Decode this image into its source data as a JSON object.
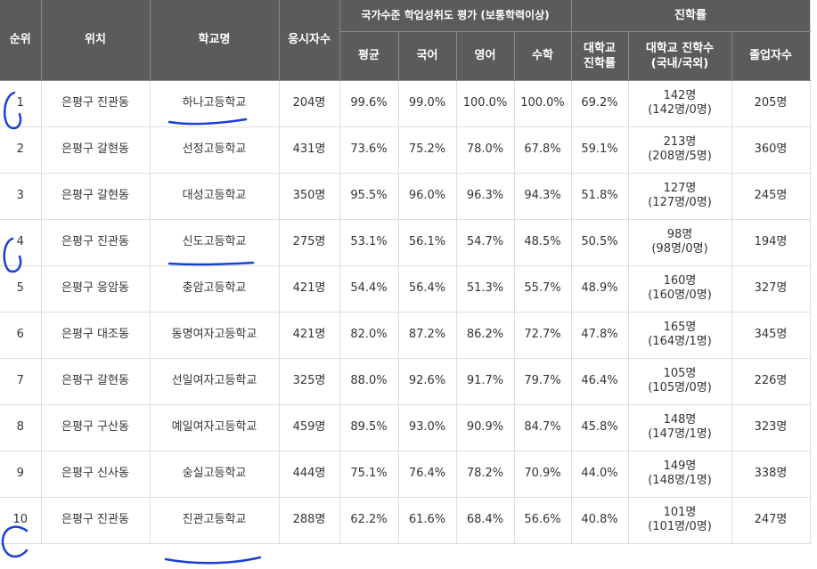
{
  "headers": {
    "rank": "순위",
    "location": "위치",
    "school": "학교명",
    "applicants": "응시자수",
    "achievement_group": "국가수준 학업성취도 평가 (보통학력이상)",
    "avg": "평균",
    "korean": "국어",
    "english": "영어",
    "math": "수학",
    "advancement_group": "진학률",
    "univ_rate": "대학교 진학률",
    "univ_count": "대학교 진학수 (국내/국외)",
    "graduates": "졸업자수"
  },
  "rows": [
    {
      "rank": "1",
      "location": "은평구 진관동",
      "school": "하나고등학교",
      "applicants": "204명",
      "avg": "99.6%",
      "korean": "99.0%",
      "english": "100.0%",
      "math": "100.0%",
      "univ_rate": "69.2%",
      "univ_count": "142명",
      "univ_split": "(142명/0명)",
      "graduates": "205명"
    },
    {
      "rank": "2",
      "location": "은평구 갈현동",
      "school": "선정고등학교",
      "applicants": "431명",
      "avg": "73.6%",
      "korean": "75.2%",
      "english": "78.0%",
      "math": "67.8%",
      "univ_rate": "59.1%",
      "univ_count": "213명",
      "univ_split": "(208명/5명)",
      "graduates": "360명"
    },
    {
      "rank": "3",
      "location": "은평구 갈현동",
      "school": "대성고등학교",
      "applicants": "350명",
      "avg": "95.5%",
      "korean": "96.0%",
      "english": "96.3%",
      "math": "94.3%",
      "univ_rate": "51.8%",
      "univ_count": "127명",
      "univ_split": "(127명/0명)",
      "graduates": "245명"
    },
    {
      "rank": "4",
      "location": "은평구 진관동",
      "school": "신도고등학교",
      "applicants": "275명",
      "avg": "53.1%",
      "korean": "56.1%",
      "english": "54.7%",
      "math": "48.5%",
      "univ_rate": "50.5%",
      "univ_count": "98명",
      "univ_split": "(98명/0명)",
      "graduates": "194명"
    },
    {
      "rank": "5",
      "location": "은평구 응암동",
      "school": "충암고등학교",
      "applicants": "421명",
      "avg": "54.4%",
      "korean": "56.4%",
      "english": "51.3%",
      "math": "55.7%",
      "univ_rate": "48.9%",
      "univ_count": "160명",
      "univ_split": "(160명/0명)",
      "graduates": "327명"
    },
    {
      "rank": "6",
      "location": "은평구 대조동",
      "school": "동명여자고등학교",
      "applicants": "421명",
      "avg": "82.0%",
      "korean": "87.2%",
      "english": "86.2%",
      "math": "72.7%",
      "univ_rate": "47.8%",
      "univ_count": "165명",
      "univ_split": "(164명/1명)",
      "graduates": "345명"
    },
    {
      "rank": "7",
      "location": "은평구 갈현동",
      "school": "선일여자고등학교",
      "applicants": "325명",
      "avg": "88.0%",
      "korean": "92.6%",
      "english": "91.7%",
      "math": "79.7%",
      "univ_rate": "46.4%",
      "univ_count": "105명",
      "univ_split": "(105명/0명)",
      "graduates": "226명"
    },
    {
      "rank": "8",
      "location": "은평구 구산동",
      "school": "예일여자고등학교",
      "applicants": "459명",
      "avg": "89.5%",
      "korean": "93.0%",
      "english": "90.9%",
      "math": "84.7%",
      "univ_rate": "45.8%",
      "univ_count": "148명",
      "univ_split": "(147명/1명)",
      "graduates": "323명"
    },
    {
      "rank": "9",
      "location": "은평구 신사동",
      "school": "숭실고등학교",
      "applicants": "444명",
      "avg": "75.1%",
      "korean": "76.4%",
      "english": "78.2%",
      "math": "70.9%",
      "univ_rate": "44.0%",
      "univ_count": "149명",
      "univ_split": "(148명/1명)",
      "graduates": "338명"
    },
    {
      "rank": "10",
      "location": "은평구 진관동",
      "school": "진관고등학교",
      "applicants": "288명",
      "avg": "62.2%",
      "korean": "61.6%",
      "english": "68.4%",
      "math": "56.6%",
      "univ_rate": "40.8%",
      "univ_count": "101명",
      "univ_split": "(101명/0명)",
      "graduates": "247명"
    }
  ],
  "annotation_color": "#1a3fd6"
}
